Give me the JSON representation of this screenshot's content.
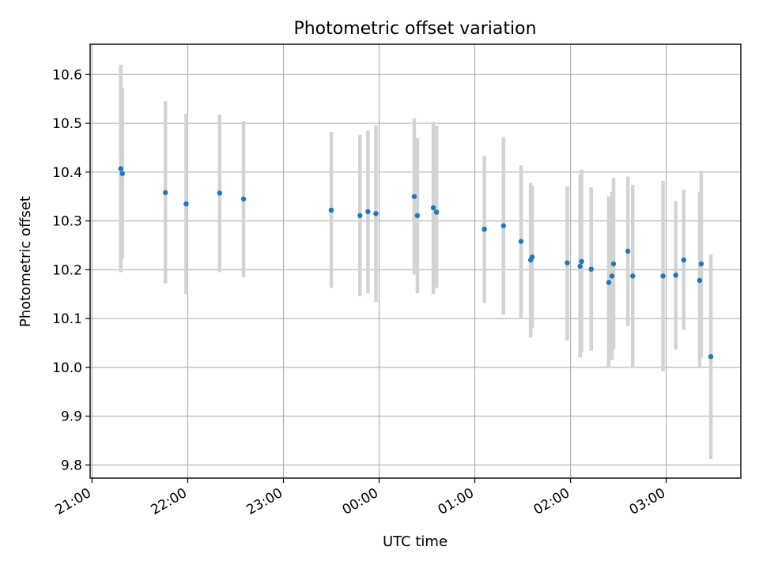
{
  "chart_data": {
    "type": "scatter",
    "title": "Photometric offset variation",
    "xlabel": "UTC time",
    "ylabel": "Photometric offset",
    "x_axis": {
      "kind": "time",
      "start": "21:00",
      "ticks": [
        "21:00",
        "22:00",
        "23:00",
        "00:00",
        "01:00",
        "02:00",
        "03:00"
      ],
      "range_hours_from_start": [
        -0.02,
        6.78
      ]
    },
    "ylim": [
      9.773,
      10.662
    ],
    "y_ticks": [
      "9.8",
      "9.9",
      "10.0",
      "10.1",
      "10.2",
      "10.3",
      "10.4",
      "10.5",
      "10.6"
    ],
    "grid": true,
    "legend": "none",
    "colors": {
      "point": "#1f77b4",
      "error_bar": "#d3d3d3",
      "grid": "#b0b0b0"
    },
    "series": [
      {
        "points": [
          {
            "t": "21:18",
            "y": 10.407,
            "lo": 10.195,
            "hi": 10.62
          },
          {
            "t": "21:19",
            "y": 10.397,
            "lo": 10.222,
            "hi": 10.573
          },
          {
            "t": "21:46",
            "y": 10.358,
            "lo": 10.172,
            "hi": 10.545
          },
          {
            "t": "21:59",
            "y": 10.335,
            "lo": 10.15,
            "hi": 10.52
          },
          {
            "t": "22:20",
            "y": 10.357,
            "lo": 10.195,
            "hi": 10.518
          },
          {
            "t": "22:35",
            "y": 10.345,
            "lo": 10.185,
            "hi": 10.505
          },
          {
            "t": "23:30",
            "y": 10.322,
            "lo": 10.163,
            "hi": 10.482
          },
          {
            "t": "23:48",
            "y": 10.311,
            "lo": 10.146,
            "hi": 10.476
          },
          {
            "t": "23:53",
            "y": 10.319,
            "lo": 10.152,
            "hi": 10.485
          },
          {
            "t": "23:58",
            "y": 10.315,
            "lo": 10.134,
            "hi": 10.496
          },
          {
            "t": "00:22",
            "y": 10.35,
            "lo": 10.19,
            "hi": 10.51
          },
          {
            "t": "00:24",
            "y": 10.311,
            "lo": 10.152,
            "hi": 10.47
          },
          {
            "t": "00:34",
            "y": 10.327,
            "lo": 10.15,
            "hi": 10.503
          },
          {
            "t": "00:36",
            "y": 10.318,
            "lo": 10.163,
            "hi": 10.495
          },
          {
            "t": "01:06",
            "y": 10.283,
            "lo": 10.132,
            "hi": 10.433
          },
          {
            "t": "01:18",
            "y": 10.29,
            "lo": 10.108,
            "hi": 10.472
          },
          {
            "t": "01:29",
            "y": 10.258,
            "lo": 10.1,
            "hi": 10.414
          },
          {
            "t": "01:35",
            "y": 10.22,
            "lo": 10.061,
            "hi": 10.378
          },
          {
            "t": "01:36",
            "y": 10.226,
            "lo": 10.08,
            "hi": 10.372
          },
          {
            "t": "01:58",
            "y": 10.214,
            "lo": 10.055,
            "hi": 10.371
          },
          {
            "t": "02:06",
            "y": 10.207,
            "lo": 10.02,
            "hi": 10.395
          },
          {
            "t": "02:07",
            "y": 10.217,
            "lo": 10.03,
            "hi": 10.405
          },
          {
            "t": "02:13",
            "y": 10.201,
            "lo": 10.034,
            "hi": 10.369
          },
          {
            "t": "02:24",
            "y": 10.174,
            "lo": 10.0,
            "hi": 10.35
          },
          {
            "t": "02:26",
            "y": 10.187,
            "lo": 10.015,
            "hi": 10.36
          },
          {
            "t": "02:27",
            "y": 10.212,
            "lo": 10.037,
            "hi": 10.388
          },
          {
            "t": "02:36",
            "y": 10.238,
            "lo": 10.085,
            "hi": 10.391
          },
          {
            "t": "02:39",
            "y": 10.187,
            "lo": 10.0,
            "hi": 10.374
          },
          {
            "t": "02:58",
            "y": 10.187,
            "lo": 9.992,
            "hi": 10.382
          },
          {
            "t": "03:06",
            "y": 10.189,
            "lo": 10.036,
            "hi": 10.341
          },
          {
            "t": "03:11",
            "y": 10.22,
            "lo": 10.077,
            "hi": 10.364
          },
          {
            "t": "03:21",
            "y": 10.178,
            "lo": 9.998,
            "hi": 10.36
          },
          {
            "t": "03:22",
            "y": 10.212,
            "lo": 10.02,
            "hi": 10.403
          },
          {
            "t": "03:28",
            "y": 10.022,
            "lo": 9.812,
            "hi": 10.231
          }
        ]
      }
    ]
  }
}
